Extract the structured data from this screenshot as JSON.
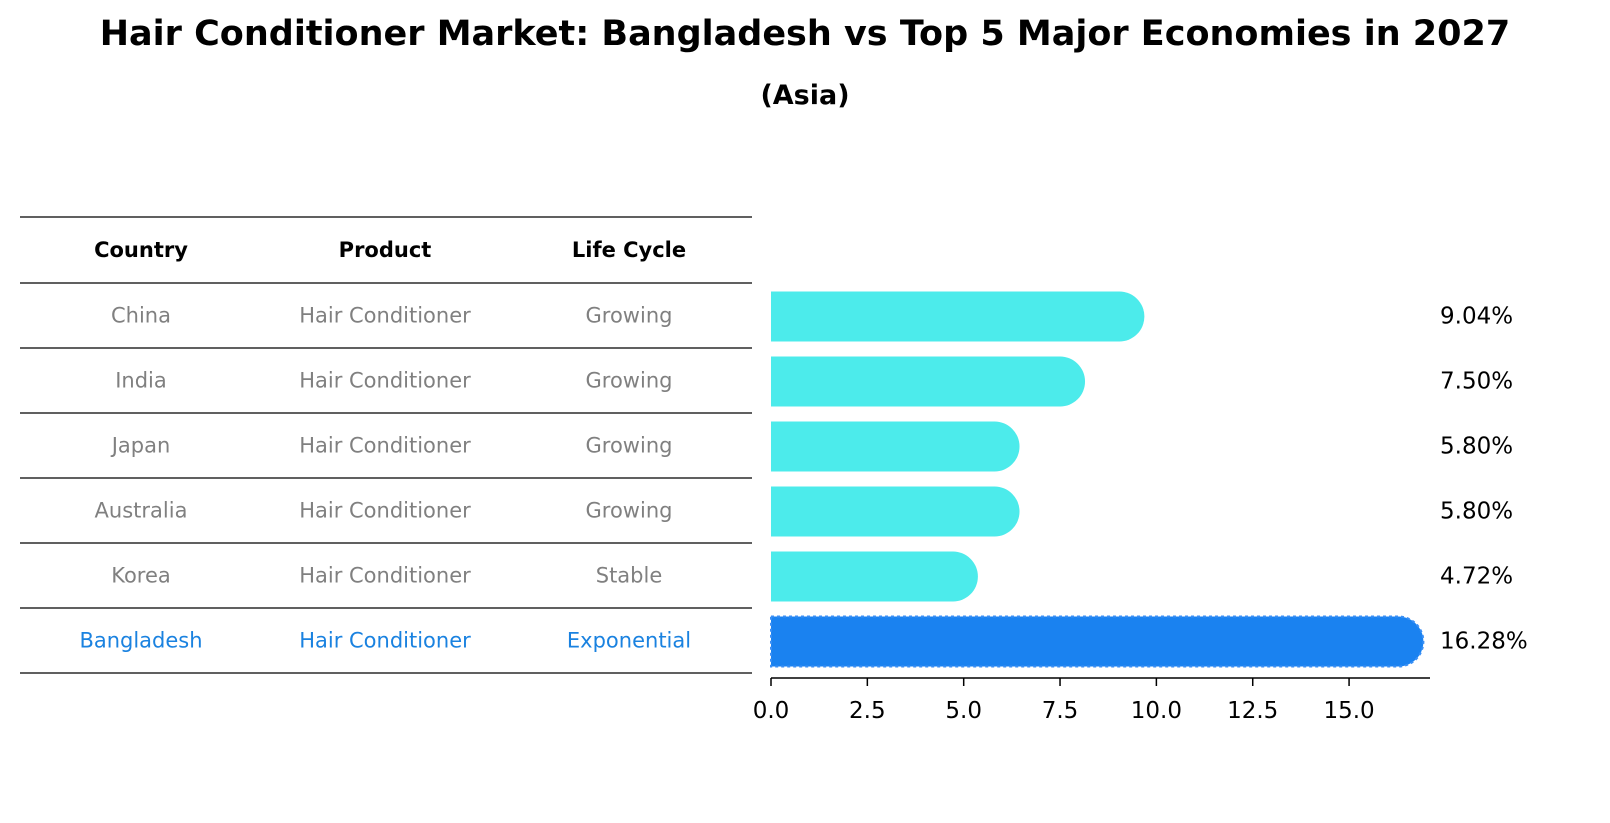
{
  "title": "Hair Conditioner Market: Bangladesh vs Top 5 Major Economies in 2027",
  "subtitle": "(Asia)",
  "table": {
    "headers": [
      "Country",
      "Product",
      "Life Cycle"
    ],
    "rows": [
      {
        "country": "China",
        "product": "Hair Conditioner",
        "life_cycle": "Growing",
        "highlight": false
      },
      {
        "country": "India",
        "product": "Hair Conditioner",
        "life_cycle": "Growing",
        "highlight": false
      },
      {
        "country": "Japan",
        "product": "Hair Conditioner",
        "life_cycle": "Growing",
        "highlight": false
      },
      {
        "country": "Australia",
        "product": "Hair Conditioner",
        "life_cycle": "Growing",
        "highlight": false
      },
      {
        "country": "Korea",
        "product": "Hair Conditioner",
        "life_cycle": "Stable",
        "highlight": false
      },
      {
        "country": "Bangladesh",
        "product": "Hair Conditioner",
        "life_cycle": "Exponential",
        "highlight": true
      }
    ]
  },
  "chart_data": {
    "type": "bar",
    "orientation": "horizontal",
    "categories": [
      "China",
      "India",
      "Japan",
      "Australia",
      "Korea",
      "Bangladesh"
    ],
    "values": [
      9.04,
      7.5,
      5.8,
      5.8,
      4.72,
      16.28
    ],
    "value_labels": [
      "9.04%",
      "7.50%",
      "5.80%",
      "5.80%",
      "4.72%",
      "16.28%"
    ],
    "x_ticks": [
      0.0,
      2.5,
      5.0,
      7.5,
      10.0,
      12.5,
      15.0
    ],
    "x_tick_labels": [
      "0.0",
      "2.5",
      "5.0",
      "7.5",
      "10.0",
      "12.5",
      "15.0"
    ],
    "xlim": [
      0,
      17.1
    ],
    "xlabel": "",
    "ylabel": "",
    "grid": false
  },
  "colors": {
    "normal_bar": "#4cebeb",
    "highlight_bar": "#1a82f0",
    "normal_text": "#808080",
    "highlight_text": "#1a82e0",
    "rule": "#000000"
  }
}
